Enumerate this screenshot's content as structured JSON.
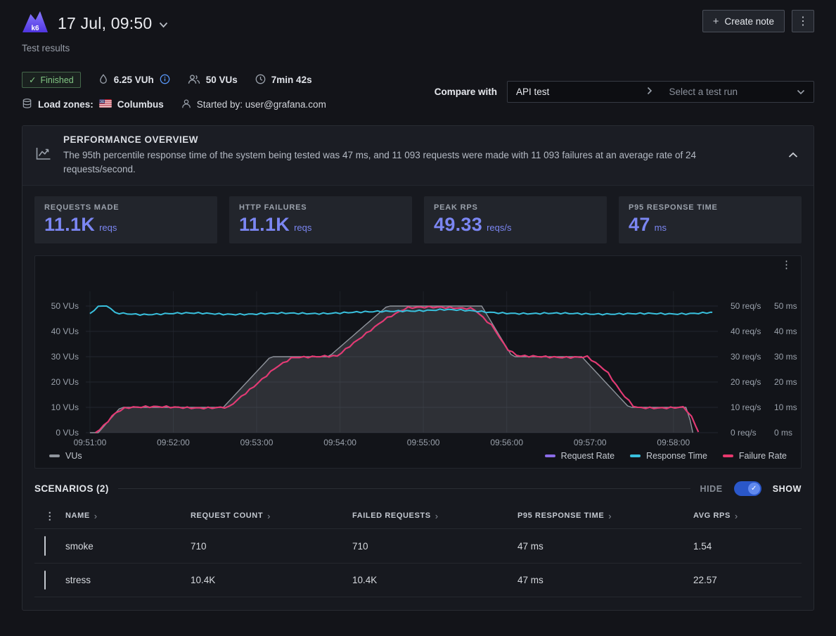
{
  "header": {
    "logo_text": "k6",
    "title": "17 Jul, 09:50",
    "subtitle": "Test results",
    "create_note_label": "Create note"
  },
  "icons": {
    "plus": "+",
    "kebab": "⋮",
    "check": "✓",
    "sort_chevron": "›"
  },
  "meta": {
    "status": "Finished",
    "vuh": "6.25 VUh",
    "vus": "50 VUs",
    "duration": "7min 42s",
    "load_zones_label": "Load zones:",
    "load_zone": "Columbus",
    "started_by": "Started by: user@grafana.com",
    "compare_label": "Compare with",
    "compare_project": "API test",
    "compare_placeholder": "Select a test run"
  },
  "overview": {
    "title": "PERFORMANCE OVERVIEW",
    "description": "The 95th percentile response time of the system being tested was 47 ms, and 11 093 requests were made with 11 093 failures at an average rate of 24 requests/second.",
    "stats": [
      {
        "label": "REQUESTS MADE",
        "value": "11.1K",
        "unit": "reqs"
      },
      {
        "label": "HTTP FAILURES",
        "value": "11.1K",
        "unit": "reqs"
      },
      {
        "label": "PEAK RPS",
        "value": "49.33",
        "unit": "reqs/s"
      },
      {
        "label": "P95 RESPONSE TIME",
        "value": "47",
        "unit": "ms"
      }
    ]
  },
  "chart_data": {
    "type": "line",
    "title": "",
    "x_tick_labels": [
      "09:51:00",
      "09:52:00",
      "09:53:00",
      "09:54:00",
      "09:55:00",
      "09:56:00",
      "09:57:00",
      "09:58:00"
    ],
    "x_tick_seconds": [
      0,
      60,
      120,
      180,
      240,
      300,
      360,
      420
    ],
    "t_domain": [
      -3,
      452
    ],
    "y_max": 50,
    "grid": true,
    "axes": {
      "left": {
        "unit": "VUs",
        "ticks": [
          0,
          10,
          20,
          30,
          40,
          50
        ]
      },
      "right1": {
        "unit": "req/s",
        "ticks": [
          0,
          10,
          20,
          30,
          40,
          50
        ]
      },
      "right2": {
        "unit": "ms",
        "ticks": [
          0,
          10,
          20,
          30,
          40,
          50
        ]
      }
    },
    "legend": {
      "vus": "VUs",
      "request_rate": "Request Rate",
      "response_time": "Response Time",
      "failure_rate": "Failure Rate"
    },
    "series": [
      {
        "name": "VUs",
        "unit": "VUs",
        "type": "area",
        "color": "#90959d",
        "fill": "rgba(145,150,158,0.22)",
        "noise": 0,
        "points": [
          [
            0,
            0
          ],
          [
            6,
            0
          ],
          [
            22,
            10
          ],
          [
            96,
            10
          ],
          [
            130,
            30
          ],
          [
            172,
            30
          ],
          [
            214,
            50
          ],
          [
            282,
            50
          ],
          [
            304,
            30
          ],
          [
            354,
            30
          ],
          [
            388,
            10
          ],
          [
            430,
            10
          ],
          [
            434,
            0
          ]
        ]
      },
      {
        "name": "Request Rate",
        "unit": "req/s",
        "type": "line",
        "color": "#8b6ce8",
        "noise": 0.6,
        "points": [
          [
            4,
            0
          ],
          [
            10,
            3
          ],
          [
            18,
            8
          ],
          [
            26,
            10
          ],
          [
            100,
            10
          ],
          [
            118,
            18
          ],
          [
            134,
            26
          ],
          [
            146,
            30
          ],
          [
            178,
            30
          ],
          [
            196,
            38
          ],
          [
            212,
            45
          ],
          [
            228,
            49.3
          ],
          [
            276,
            49.3
          ],
          [
            290,
            42
          ],
          [
            300,
            33
          ],
          [
            308,
            30
          ],
          [
            358,
            30
          ],
          [
            372,
            24
          ],
          [
            382,
            16
          ],
          [
            392,
            10
          ],
          [
            428,
            10
          ],
          [
            433,
            6
          ],
          [
            438,
            0.3
          ]
        ]
      },
      {
        "name": "Failure Rate",
        "unit": "req/s",
        "type": "line",
        "color": "#e8386d",
        "noise": 0.6,
        "points": [
          [
            4,
            0
          ],
          [
            10,
            3
          ],
          [
            18,
            8
          ],
          [
            26,
            10
          ],
          [
            100,
            10
          ],
          [
            118,
            18
          ],
          [
            134,
            26
          ],
          [
            146,
            30
          ],
          [
            178,
            30
          ],
          [
            196,
            38
          ],
          [
            212,
            45
          ],
          [
            228,
            49.3
          ],
          [
            276,
            49.3
          ],
          [
            290,
            42
          ],
          [
            300,
            33
          ],
          [
            308,
            30
          ],
          [
            358,
            30
          ],
          [
            372,
            24
          ],
          [
            382,
            16
          ],
          [
            392,
            10
          ],
          [
            428,
            10
          ],
          [
            433,
            6
          ],
          [
            438,
            0.3
          ]
        ]
      },
      {
        "name": "Response Time",
        "unit": "ms",
        "type": "line",
        "color": "#39c0dd",
        "noise": 0.5,
        "points": [
          [
            0,
            46.8
          ],
          [
            5,
            48.5
          ],
          [
            9,
            54.5
          ],
          [
            13,
            50
          ],
          [
            18,
            47.3
          ],
          [
            40,
            46.8
          ],
          [
            80,
            47.1
          ],
          [
            120,
            46.8
          ],
          [
            160,
            47.2
          ],
          [
            200,
            47.5
          ],
          [
            225,
            48.2
          ],
          [
            255,
            48.5
          ],
          [
            285,
            47.7
          ],
          [
            320,
            46.9
          ],
          [
            356,
            47.1
          ],
          [
            392,
            46.8
          ],
          [
            420,
            47.0
          ],
          [
            448,
            47.5
          ]
        ]
      }
    ]
  },
  "scenarios": {
    "title": "SCENARIOS (2)",
    "hide_label": "HIDE",
    "show_label": "SHOW",
    "columns": [
      "NAME",
      "REQUEST COUNT",
      "FAILED REQUESTS",
      "P95 RESPONSE TIME",
      "AVG RPS"
    ],
    "rows": [
      {
        "name": "smoke",
        "request_count": "710",
        "failed_requests": "710",
        "p95_response_time": "47 ms",
        "avg_rps": "1.54"
      },
      {
        "name": "stress",
        "request_count": "10.4K",
        "failed_requests": "10.4K",
        "p95_response_time": "47 ms",
        "avg_rps": "22.57"
      }
    ]
  },
  "colors": {
    "accent": "#7b86f2",
    "success": "#73bf69",
    "vus": "#90959d",
    "request_rate": "#8b6ce8",
    "response_time": "#39c0dd",
    "failure_rate": "#e8386d"
  }
}
